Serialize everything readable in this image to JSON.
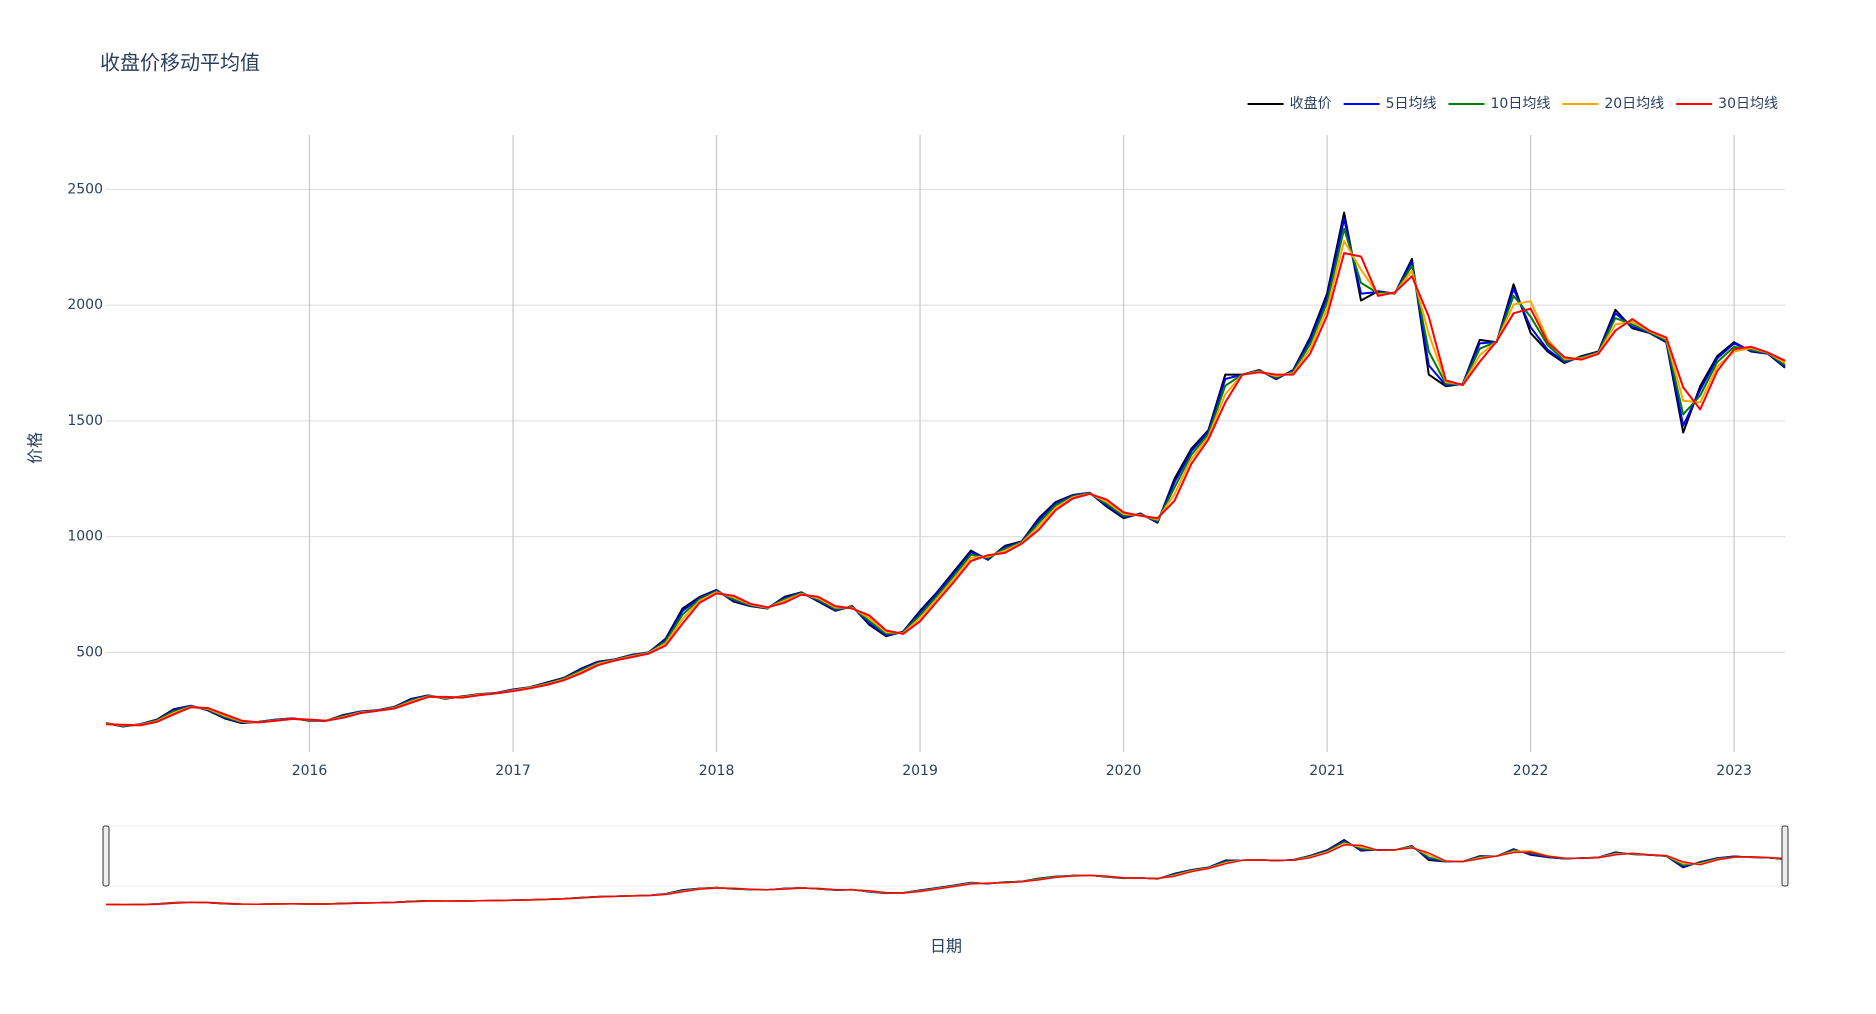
{
  "chart_data": {
    "type": "line",
    "title": "收盘价移动平均值",
    "x_label": "日期",
    "y_label": "价格",
    "x": [
      "2015-01",
      "2015-02",
      "2015-03",
      "2015-04",
      "2015-05",
      "2015-06",
      "2015-07",
      "2015-08",
      "2015-09",
      "2015-10",
      "2015-11",
      "2015-12",
      "2016-01",
      "2016-02",
      "2016-03",
      "2016-04",
      "2016-05",
      "2016-06",
      "2016-07",
      "2016-08",
      "2016-09",
      "2016-10",
      "2016-11",
      "2016-12",
      "2017-01",
      "2017-02",
      "2017-03",
      "2017-04",
      "2017-05",
      "2017-06",
      "2017-07",
      "2017-08",
      "2017-09",
      "2017-10",
      "2017-11",
      "2017-12",
      "2018-01",
      "2018-02",
      "2018-03",
      "2018-04",
      "2018-05",
      "2018-06",
      "2018-07",
      "2018-08",
      "2018-09",
      "2018-10",
      "2018-11",
      "2018-12",
      "2019-01",
      "2019-02",
      "2019-03",
      "2019-04",
      "2019-05",
      "2019-06",
      "2019-07",
      "2019-08",
      "2019-09",
      "2019-10",
      "2019-11",
      "2019-12",
      "2020-01",
      "2020-02",
      "2020-03",
      "2020-04",
      "2020-05",
      "2020-06",
      "2020-07",
      "2020-08",
      "2020-09",
      "2020-10",
      "2020-11",
      "2020-12",
      "2021-01",
      "2021-02",
      "2021-03",
      "2021-04",
      "2021-05",
      "2021-06",
      "2021-07",
      "2021-08",
      "2021-09",
      "2021-10",
      "2021-11",
      "2021-12",
      "2022-01",
      "2022-02",
      "2022-03",
      "2022-04",
      "2022-05",
      "2022-06",
      "2022-07",
      "2022-08",
      "2022-09",
      "2022-10",
      "2022-11",
      "2022-12",
      "2023-01",
      "2023-02",
      "2023-03",
      "2023-04"
    ],
    "series": [
      {
        "name": "收盘价",
        "color": "#000000",
        "values": [
          195,
          180,
          190,
          210,
          255,
          270,
          250,
          215,
          195,
          200,
          210,
          215,
          205,
          205,
          230,
          245,
          250,
          265,
          300,
          315,
          300,
          310,
          320,
          325,
          340,
          350,
          370,
          390,
          430,
          460,
          470,
          490,
          500,
          560,
          690,
          740,
          770,
          720,
          700,
          690,
          740,
          760,
          720,
          680,
          700,
          620,
          570,
          590,
          680,
          760,
          850,
          940,
          900,
          960,
          980,
          1080,
          1150,
          1180,
          1190,
          1130,
          1080,
          1100,
          1060,
          1250,
          1380,
          1460,
          1700,
          1700,
          1720,
          1680,
          1720,
          1860,
          2050,
          2400,
          2020,
          2060,
          2050,
          2200,
          1700,
          1650,
          1660,
          1850,
          1840,
          2090,
          1880,
          1800,
          1750,
          1780,
          1800,
          1980,
          1900,
          1880,
          1840,
          1450,
          1650,
          1780,
          1840,
          1800,
          1790,
          1730
        ]
      },
      {
        "name": "5日均线",
        "color": "#0000ff",
        "values": [
          195,
          181,
          189,
          208,
          251,
          269,
          252,
          218,
          197,
          200,
          209,
          215,
          206,
          205,
          228,
          244,
          250,
          264,
          297,
          314,
          301,
          309,
          319,
          325,
          339,
          349,
          368,
          388,
          427,
          458,
          469,
          488,
          499,
          555,
          680,
          736,
          768,
          724,
          702,
          691,
          736,
          758,
          723,
          683,
          698,
          626,
          574,
          588,
          673,
          754,
          843,
          933,
          903,
          955,
          978,
          1072,
          1144,
          1178,
          1189,
          1135,
          1084,
          1098,
          1063,
          1235,
          1370,
          1454,
          1681,
          1700,
          1718,
          1683,
          1717,
          1850,
          2035,
          2372,
          2050,
          2057,
          2051,
          2188,
          1740,
          1654,
          1659,
          1835,
          1841,
          2070,
          1905,
          1808,
          1754,
          1777,
          1798,
          1965,
          1906,
          1882,
          1843,
          1480,
          1634,
          1770,
          1835,
          1803,
          1791,
          1735
        ]
      },
      {
        "name": "10日均线",
        "color": "#008000",
        "values": [
          194,
          183,
          188,
          206,
          246,
          267,
          254,
          222,
          199,
          199,
          208,
          214,
          207,
          205,
          225,
          242,
          249,
          262,
          293,
          312,
          303,
          308,
          318,
          324,
          337,
          348,
          366,
          386,
          422,
          454,
          468,
          486,
          498,
          548,
          664,
          730,
          764,
          730,
          704,
          692,
          730,
          756,
          728,
          688,
          696,
          636,
          580,
          586,
          662,
          744,
          832,
          922,
          908,
          948,
          976,
          1060,
          1136,
          1174,
          1188,
          1142,
          1090,
          1096,
          1068,
          1212,
          1354,
          1444,
          1652,
          1700,
          1716,
          1688,
          1712,
          1832,
          2012,
          2330,
          2096,
          2052,
          2052,
          2170,
          1800,
          1660,
          1658,
          1812,
          1842,
          2040,
          1950,
          1828,
          1760,
          1774,
          1796,
          1944,
          1916,
          1884,
          1848,
          1528,
          1610,
          1754,
          1820,
          1808,
          1792,
          1742
        ]
      },
      {
        "name": "20日均线",
        "color": "#ffa500",
        "values": [
          192,
          185,
          187,
          203,
          239,
          265,
          257,
          227,
          202,
          198,
          206,
          213,
          209,
          205,
          221,
          240,
          248,
          260,
          288,
          310,
          305,
          307,
          317,
          323,
          335,
          347,
          363,
          383,
          416,
          450,
          467,
          483,
          497,
          539,
          645,
          723,
          760,
          738,
          707,
          693,
          723,
          753,
          734,
          694,
          693,
          648,
          588,
          583,
          649,
          732,
          819,
          909,
          914,
          939,
          973,
          1045,
          1125,
          1170,
          1186,
          1151,
          1098,
          1093,
          1074,
          1184,
          1335,
          1432,
          1616,
          1700,
          1713,
          1694,
          1706,
          1811,
          1984,
          2277,
          2153,
          2046,
          2053,
          2148,
          1875,
          1668,
          1657,
          1784,
          1844,
          2003,
          2017,
          1852,
          1768,
          1770,
          1793,
          1917,
          1928,
          1887,
          1854,
          1587,
          1580,
          1734,
          1800,
          1815,
          1794,
          1751
        ]
      },
      {
        "name": "30日均线",
        "color": "#ff0000",
        "values": [
          190,
          188,
          185,
          200,
          233,
          263,
          260,
          233,
          205,
          198,
          205,
          213,
          210,
          205,
          218,
          238,
          248,
          258,
          283,
          308,
          308,
          305,
          315,
          323,
          333,
          345,
          360,
          380,
          410,
          445,
          465,
          480,
          495,
          530,
          625,
          715,
          755,
          745,
          710,
          695,
          715,
          750,
          740,
          700,
          690,
          660,
          595,
          580,
          635,
          720,
          805,
          895,
          920,
          930,
          970,
          1030,
          1115,
          1165,
          1185,
          1160,
          1105,
          1090,
          1080,
          1155,
          1315,
          1420,
          1580,
          1700,
          1710,
          1700,
          1700,
          1790,
          1955,
          2225,
          2210,
          2040,
          2055,
          2125,
          1950,
          1675,
          1655,
          1755,
          1845,
          1965,
          1985,
          1840,
          1775,
          1765,
          1790,
          1890,
          1940,
          1890,
          1860,
          1645,
          1550,
          1715,
          1810,
          1820,
          1795,
          1760
        ]
      }
    ],
    "xlim": [
      "2015-01",
      "2023-04"
    ],
    "xticks": [
      2016,
      2017,
      2018,
      2019,
      2020,
      2021,
      2022,
      2023
    ],
    "ylim": [
      70,
      2735
    ],
    "yticks": [
      500,
      1000,
      1500,
      2000,
      2500
    ],
    "grid": true,
    "legend": "top-right",
    "range_slider": true
  }
}
